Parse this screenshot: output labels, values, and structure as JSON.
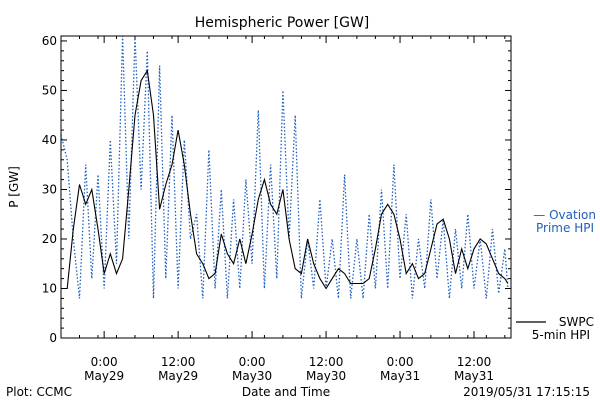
{
  "chart_data": {
    "type": "line",
    "title": "Hemispheric Power [GW]",
    "ylabel": "P [GW]",
    "xlabel": "Date and Time",
    "ylim": [
      0,
      61
    ],
    "xlim": [
      "2019-05-28 17:00",
      "2019-05-31 18:00"
    ],
    "yticks": [
      0,
      10,
      20,
      30,
      40,
      50,
      60
    ],
    "ytick_labels": [
      "0",
      "10",
      "20",
      "30",
      "40",
      "50",
      "60"
    ],
    "xticks": [
      {
        "t": "2019-05-29 00:00",
        "time": "0:00",
        "day": "May29"
      },
      {
        "t": "2019-05-29 12:00",
        "time": "12:00",
        "day": "May29"
      },
      {
        "t": "2019-05-30 00:00",
        "time": "0:00",
        "day": "May30"
      },
      {
        "t": "2019-05-30 12:00",
        "time": "12:00",
        "day": "May30"
      },
      {
        "t": "2019-05-31 00:00",
        "time": "0:00",
        "day": "May31"
      },
      {
        "t": "2019-05-31 12:00",
        "time": "12:00",
        "day": "May31"
      }
    ],
    "grid": false,
    "legend_placement": "right",
    "series": [
      {
        "name_lines": [
          "— Ovation",
          "Prime HPI"
        ],
        "style": "dotted",
        "color": "#1f5fbf",
        "points": [
          [
            "2019-05-28 17:00",
            41
          ],
          [
            "2019-05-28 18:00",
            36
          ],
          [
            "2019-05-28 19:00",
            20
          ],
          [
            "2019-05-28 20:00",
            8
          ],
          [
            "2019-05-28 21:00",
            35
          ],
          [
            "2019-05-28 22:00",
            12
          ],
          [
            "2019-05-28 23:00",
            33
          ],
          [
            "2019-05-29 00:00",
            10
          ],
          [
            "2019-05-29 01:00",
            40
          ],
          [
            "2019-05-29 02:00",
            15
          ],
          [
            "2019-05-29 03:00",
            61
          ],
          [
            "2019-05-29 04:00",
            20
          ],
          [
            "2019-05-29 05:00",
            61
          ],
          [
            "2019-05-29 06:00",
            30
          ],
          [
            "2019-05-29 07:00",
            58
          ],
          [
            "2019-05-29 08:00",
            8
          ],
          [
            "2019-05-29 09:00",
            55
          ],
          [
            "2019-05-29 10:00",
            12
          ],
          [
            "2019-05-29 11:00",
            45
          ],
          [
            "2019-05-29 12:00",
            10
          ],
          [
            "2019-05-29 13:00",
            40
          ],
          [
            "2019-05-29 14:00",
            20
          ],
          [
            "2019-05-29 15:00",
            25
          ],
          [
            "2019-05-29 16:00",
            8
          ],
          [
            "2019-05-29 17:00",
            38
          ],
          [
            "2019-05-29 18:00",
            10
          ],
          [
            "2019-05-29 19:00",
            30
          ],
          [
            "2019-05-29 20:00",
            8
          ],
          [
            "2019-05-29 21:00",
            28
          ],
          [
            "2019-05-29 22:00",
            10
          ],
          [
            "2019-05-29 23:00",
            32
          ],
          [
            "2019-05-30 00:00",
            15
          ],
          [
            "2019-05-30 01:00",
            46
          ],
          [
            "2019-05-30 02:00",
            10
          ],
          [
            "2019-05-30 03:00",
            35
          ],
          [
            "2019-05-30 04:00",
            12
          ],
          [
            "2019-05-30 05:00",
            50
          ],
          [
            "2019-05-30 06:00",
            20
          ],
          [
            "2019-05-30 07:00",
            45
          ],
          [
            "2019-05-30 08:00",
            8
          ],
          [
            "2019-05-30 09:00",
            20
          ],
          [
            "2019-05-30 10:00",
            10
          ],
          [
            "2019-05-30 11:00",
            28
          ],
          [
            "2019-05-30 12:00",
            10
          ],
          [
            "2019-05-30 13:00",
            20
          ],
          [
            "2019-05-30 14:00",
            8
          ],
          [
            "2019-05-30 15:00",
            33
          ],
          [
            "2019-05-30 16:00",
            8
          ],
          [
            "2019-05-30 17:00",
            20
          ],
          [
            "2019-05-30 18:00",
            8
          ],
          [
            "2019-05-30 19:00",
            25
          ],
          [
            "2019-05-30 20:00",
            10
          ],
          [
            "2019-05-30 21:00",
            30
          ],
          [
            "2019-05-30 22:00",
            10
          ],
          [
            "2019-05-30 23:00",
            35
          ],
          [
            "2019-05-31 00:00",
            12
          ],
          [
            "2019-05-31 01:00",
            25
          ],
          [
            "2019-05-31 02:00",
            8
          ],
          [
            "2019-05-31 03:00",
            20
          ],
          [
            "2019-05-31 04:00",
            10
          ],
          [
            "2019-05-31 05:00",
            28
          ],
          [
            "2019-05-31 06:00",
            12
          ],
          [
            "2019-05-31 07:00",
            24
          ],
          [
            "2019-05-31 08:00",
            8
          ],
          [
            "2019-05-31 09:00",
            22
          ],
          [
            "2019-05-31 10:00",
            10
          ],
          [
            "2019-05-31 11:00",
            25
          ],
          [
            "2019-05-31 12:00",
            10
          ],
          [
            "2019-05-31 13:00",
            20
          ],
          [
            "2019-05-31 14:00",
            8
          ],
          [
            "2019-05-31 15:00",
            22
          ],
          [
            "2019-05-31 16:00",
            9
          ],
          [
            "2019-05-31 17:00",
            18
          ],
          [
            "2019-05-31 17:30",
            10
          ]
        ]
      },
      {
        "name_lines": [
          "SWPC",
          "5-min HPI"
        ],
        "style": "solid",
        "color": "#000000",
        "points": [
          [
            "2019-05-28 17:00",
            10
          ],
          [
            "2019-05-28 18:00",
            10
          ],
          [
            "2019-05-28 19:00",
            22
          ],
          [
            "2019-05-28 20:00",
            31
          ],
          [
            "2019-05-28 21:00",
            27
          ],
          [
            "2019-05-28 22:00",
            30
          ],
          [
            "2019-05-28 23:00",
            22
          ],
          [
            "2019-05-29 00:00",
            13
          ],
          [
            "2019-05-29 01:00",
            17
          ],
          [
            "2019-05-29 02:00",
            13
          ],
          [
            "2019-05-29 03:00",
            16
          ],
          [
            "2019-05-29 04:00",
            30
          ],
          [
            "2019-05-29 05:00",
            45
          ],
          [
            "2019-05-29 06:00",
            52
          ],
          [
            "2019-05-29 07:00",
            54
          ],
          [
            "2019-05-29 08:00",
            45
          ],
          [
            "2019-05-29 09:00",
            26
          ],
          [
            "2019-05-29 10:00",
            31
          ],
          [
            "2019-05-29 11:00",
            35
          ],
          [
            "2019-05-29 12:00",
            42
          ],
          [
            "2019-05-29 13:00",
            35
          ],
          [
            "2019-05-29 14:00",
            25
          ],
          [
            "2019-05-29 15:00",
            17
          ],
          [
            "2019-05-29 16:00",
            15
          ],
          [
            "2019-05-29 17:00",
            12
          ],
          [
            "2019-05-29 18:00",
            13
          ],
          [
            "2019-05-29 19:00",
            21
          ],
          [
            "2019-05-29 20:00",
            17
          ],
          [
            "2019-05-29 21:00",
            15
          ],
          [
            "2019-05-29 22:00",
            20
          ],
          [
            "2019-05-29 23:00",
            15
          ],
          [
            "2019-05-30 00:00",
            21
          ],
          [
            "2019-05-30 01:00",
            28
          ],
          [
            "2019-05-30 02:00",
            32
          ],
          [
            "2019-05-30 03:00",
            27
          ],
          [
            "2019-05-30 04:00",
            25
          ],
          [
            "2019-05-30 05:00",
            30
          ],
          [
            "2019-05-30 06:00",
            20
          ],
          [
            "2019-05-30 07:00",
            14
          ],
          [
            "2019-05-30 08:00",
            13
          ],
          [
            "2019-05-30 09:00",
            20
          ],
          [
            "2019-05-30 10:00",
            15
          ],
          [
            "2019-05-30 11:00",
            12
          ],
          [
            "2019-05-30 12:00",
            10
          ],
          [
            "2019-05-30 13:00",
            12
          ],
          [
            "2019-05-30 14:00",
            14
          ],
          [
            "2019-05-30 15:00",
            13
          ],
          [
            "2019-05-30 16:00",
            11
          ],
          [
            "2019-05-30 17:00",
            11
          ],
          [
            "2019-05-30 18:00",
            11
          ],
          [
            "2019-05-30 19:00",
            12
          ],
          [
            "2019-05-30 20:00",
            18
          ],
          [
            "2019-05-30 21:00",
            25
          ],
          [
            "2019-05-30 22:00",
            27
          ],
          [
            "2019-05-30 23:00",
            25
          ],
          [
            "2019-05-31 00:00",
            20
          ],
          [
            "2019-05-31 01:00",
            13
          ],
          [
            "2019-05-31 02:00",
            15
          ],
          [
            "2019-05-31 03:00",
            12
          ],
          [
            "2019-05-31 04:00",
            13
          ],
          [
            "2019-05-31 05:00",
            18
          ],
          [
            "2019-05-31 06:00",
            23
          ],
          [
            "2019-05-31 07:00",
            24
          ],
          [
            "2019-05-31 08:00",
            20
          ],
          [
            "2019-05-31 09:00",
            13
          ],
          [
            "2019-05-31 10:00",
            18
          ],
          [
            "2019-05-31 11:00",
            14
          ],
          [
            "2019-05-31 12:00",
            18
          ],
          [
            "2019-05-31 13:00",
            20
          ],
          [
            "2019-05-31 14:00",
            19
          ],
          [
            "2019-05-31 15:00",
            16
          ],
          [
            "2019-05-31 16:00",
            13
          ],
          [
            "2019-05-31 17:00",
            12
          ],
          [
            "2019-05-31 17:30",
            11
          ]
        ]
      }
    ]
  },
  "footer": {
    "left": "Plot: CCMC",
    "right": "2019/05/31 17:15:15"
  }
}
